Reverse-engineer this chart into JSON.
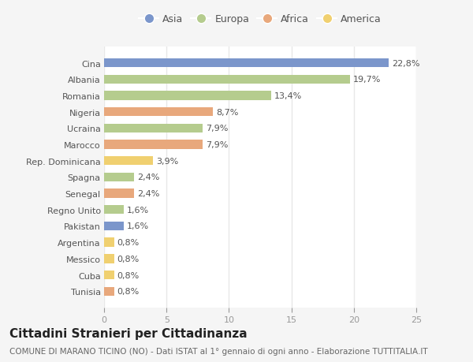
{
  "countries": [
    "Cina",
    "Albania",
    "Romania",
    "Nigeria",
    "Ucraina",
    "Marocco",
    "Rep. Dominicana",
    "Spagna",
    "Senegal",
    "Regno Unito",
    "Pakistan",
    "Argentina",
    "Messico",
    "Cuba",
    "Tunisia"
  ],
  "values": [
    22.8,
    19.7,
    13.4,
    8.7,
    7.9,
    7.9,
    3.9,
    2.4,
    2.4,
    1.6,
    1.6,
    0.8,
    0.8,
    0.8,
    0.8
  ],
  "labels": [
    "22,8%",
    "19,7%",
    "13,4%",
    "8,7%",
    "7,9%",
    "7,9%",
    "3,9%",
    "2,4%",
    "2,4%",
    "1,6%",
    "1,6%",
    "0,8%",
    "0,8%",
    "0,8%",
    "0,8%"
  ],
  "continents": [
    "Asia",
    "Europa",
    "Europa",
    "Africa",
    "Europa",
    "Africa",
    "America",
    "Europa",
    "Africa",
    "Europa",
    "Asia",
    "America",
    "America",
    "America",
    "Africa"
  ],
  "continent_colors": {
    "Asia": "#7b96cb",
    "Europa": "#b5cc8e",
    "Africa": "#e8a87c",
    "America": "#f0d070"
  },
  "legend_order": [
    "Asia",
    "Europa",
    "Africa",
    "America"
  ],
  "xlim": [
    0,
    25
  ],
  "xticks": [
    0,
    5,
    10,
    15,
    20,
    25
  ],
  "title": "Cittadini Stranieri per Cittadinanza",
  "subtitle": "COMUNE DI MARANO TICINO (NO) - Dati ISTAT al 1° gennaio di ogni anno - Elaborazione TUTTITALIA.IT",
  "plot_bg_color": "#ffffff",
  "fig_bg_color": "#f5f5f5",
  "bar_height": 0.55,
  "label_fontsize": 8,
  "title_fontsize": 11,
  "subtitle_fontsize": 7.5,
  "tick_fontsize": 8,
  "legend_fontsize": 9,
  "grid_color": "#e8e8e8"
}
